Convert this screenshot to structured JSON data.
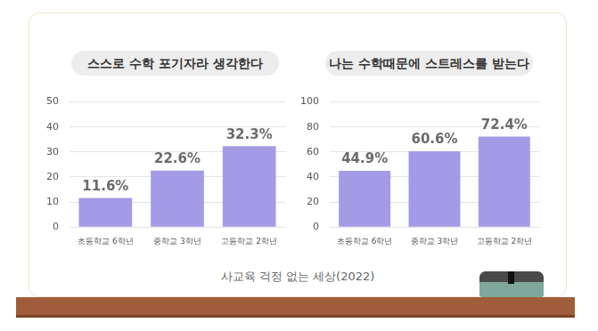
{
  "chart_data": [
    {
      "type": "bar",
      "title": "스스로 수학 포기자라 생각한다",
      "categories": [
        "초등학교 6학년",
        "중학교 3학년",
        "고등학교 2학년"
      ],
      "values": [
        11.6,
        22.6,
        32.3
      ],
      "value_labels": [
        "11.6%",
        "22.6%",
        "32.3%"
      ],
      "color": "#a49be6",
      "ylim": [
        0,
        50
      ],
      "yticks": [
        0,
        10,
        20,
        30,
        40,
        50
      ],
      "grid": true,
      "data_labels": true
    },
    {
      "type": "bar",
      "title": "나는 수학때문에 스트레스를 받는다",
      "categories": [
        "초등학교 6학년",
        "중학교 3학년",
        "고등학교 2학년"
      ],
      "values": [
        44.9,
        60.6,
        72.4
      ],
      "value_labels": [
        "44.9%",
        "60.6%",
        "72.4%"
      ],
      "color": "#a49be6",
      "ylim": [
        0,
        100
      ],
      "yticks": [
        0,
        20,
        40,
        60,
        80,
        100
      ],
      "grid": true,
      "data_labels": true
    }
  ],
  "caption": "사교육 걱정 없는 세상(2022)"
}
